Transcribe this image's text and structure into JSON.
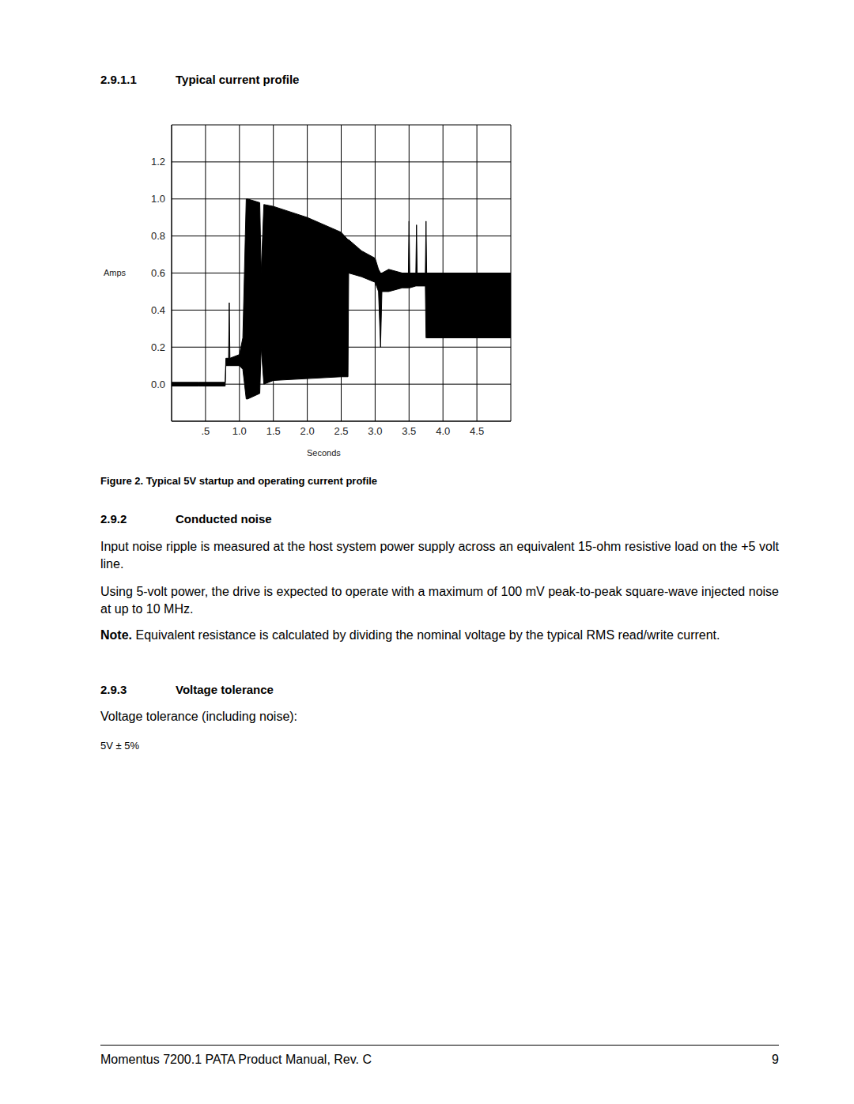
{
  "header": {
    "number": "2.9.1.1",
    "title": "Typical current profile"
  },
  "chart_data": {
    "type": "area",
    "ylabel": "Amps",
    "xlabel": "Seconds",
    "color": "#000000",
    "grid": true,
    "xlim": [
      0,
      5
    ],
    "ylim": [
      -0.2,
      1.4
    ],
    "xticks": [
      {
        "value": 0.5,
        "label": ".5"
      },
      {
        "value": 1,
        "label": "1.0"
      },
      1.5,
      {
        "value": 2,
        "label": "2.0"
      },
      2.5,
      {
        "value": 3,
        "label": "3.0"
      },
      3.5,
      {
        "value": 4,
        "label": "4.0"
      },
      4.5
    ],
    "yticks": [
      {
        "value": 0,
        "label": "0.0"
      },
      0.2,
      0.4,
      0.6,
      0.8,
      {
        "value": 1,
        "label": "1.0"
      },
      1.2
    ],
    "x": [
      0,
      0.4,
      0.79,
      0.8,
      0.84,
      0.85,
      0.86,
      1.0,
      1.05,
      1.1,
      1.12,
      1.3,
      1.32,
      1.36,
      1.5,
      2.0,
      2.5,
      2.6,
      2.61,
      2.8,
      3.0,
      3.05,
      3.08,
      3.1,
      3.2,
      3.4,
      3.49,
      3.5,
      3.51,
      3.6,
      3.61,
      3.62,
      3.74,
      3.75,
      3.76,
      3.8,
      4.5,
      5.0
    ],
    "values": [
      [
        -0.01,
        0.01
      ],
      [
        -0.01,
        0.01
      ],
      [
        -0.01,
        0.01
      ],
      [
        0.1,
        0.14
      ],
      [
        0.1,
        0.14
      ],
      [
        0.1,
        0.44
      ],
      [
        0.1,
        0.14
      ],
      [
        0.1,
        0.16
      ],
      [
        0.08,
        0.25
      ],
      [
        -0.08,
        1.0
      ],
      [
        -0.08,
        1.0
      ],
      [
        -0.05,
        0.98
      ],
      [
        0.2,
        0.6
      ],
      [
        0.0,
        0.97
      ],
      [
        0.02,
        0.96
      ],
      [
        0.03,
        0.9
      ],
      [
        0.04,
        0.82
      ],
      [
        0.04,
        0.78
      ],
      [
        0.6,
        0.78
      ],
      [
        0.58,
        0.72
      ],
      [
        0.55,
        0.68
      ],
      [
        0.5,
        0.62
      ],
      [
        0.2,
        0.6
      ],
      [
        0.5,
        0.6
      ],
      [
        0.5,
        0.62
      ],
      [
        0.52,
        0.6
      ],
      [
        0.52,
        0.6
      ],
      [
        0.52,
        0.88
      ],
      [
        0.52,
        0.6
      ],
      [
        0.53,
        0.6
      ],
      [
        0.53,
        0.86
      ],
      [
        0.53,
        0.6
      ],
      [
        0.53,
        0.6
      ],
      [
        0.25,
        0.88
      ],
      [
        0.25,
        0.6
      ],
      [
        0.25,
        0.6
      ],
      [
        0.25,
        0.6
      ],
      [
        0.25,
        0.6
      ]
    ]
  },
  "caption": "Figure 2. Typical 5V startup and operating current profile",
  "sections": [
    {
      "number": "2.9.2",
      "title": "Conducted noise",
      "paragraphs": [
        "Input noise ripple is measured at the host system power supply across an equivalent 15-ohm resistive load on the +5 volt line.",
        "Using 5-volt power, the drive is expected to operate with a maximum of 100 mV peak-to-peak square-wave injected noise at up to 10 MHz."
      ],
      "note": {
        "label": "Note.",
        "text": "Equivalent resistance is calculated by dividing the nominal voltage by the typical RMS read/write current."
      }
    },
    {
      "number": "2.9.3",
      "title": "Voltage tolerance",
      "paragraphs": [
        "Voltage tolerance (including noise):"
      ],
      "spec": "5V ± 5%"
    }
  ],
  "footer": {
    "text": "Momentus 7200.1 PATA Product Manual, Rev. C",
    "page": 9
  }
}
